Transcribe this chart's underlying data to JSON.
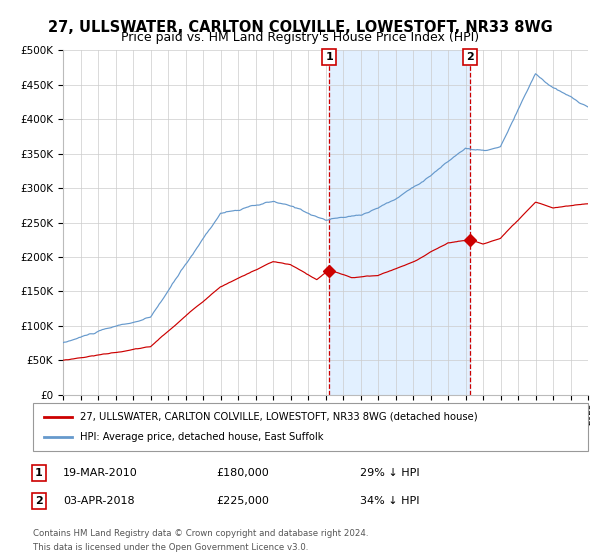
{
  "title": "27, ULLSWATER, CARLTON COLVILLE, LOWESTOFT, NR33 8WG",
  "subtitle": "Price paid vs. HM Land Registry's House Price Index (HPI)",
  "legend_label_red": "27, ULLSWATER, CARLTON COLVILLE, LOWESTOFT, NR33 8WG (detached house)",
  "legend_label_blue": "HPI: Average price, detached house, East Suffolk",
  "annotation1_date": "19-MAR-2010",
  "annotation1_price": "£180,000",
  "annotation1_hpi": "29% ↓ HPI",
  "annotation1_year": 2010.21,
  "annotation1_value": 180000,
  "annotation2_date": "03-APR-2018",
  "annotation2_price": "£225,000",
  "annotation2_hpi": "34% ↓ HPI",
  "annotation2_year": 2018.27,
  "annotation2_value": 225000,
  "footer_line1": "Contains HM Land Registry data © Crown copyright and database right 2024.",
  "footer_line2": "This data is licensed under the Open Government Licence v3.0.",
  "xmin": 1995,
  "xmax": 2025,
  "ymin": 0,
  "ymax": 500000,
  "yticks": [
    0,
    50000,
    100000,
    150000,
    200000,
    250000,
    300000,
    350000,
    400000,
    450000,
    500000
  ],
  "ytick_labels": [
    "£0",
    "£50K",
    "£100K",
    "£150K",
    "£200K",
    "£250K",
    "£300K",
    "£350K",
    "£400K",
    "£450K",
    "£500K"
  ],
  "red_color": "#cc0000",
  "blue_color": "#6699cc",
  "vline_color": "#cc0000",
  "shading_color": "#ddeeff",
  "grid_color": "#cccccc",
  "background_color": "#ffffff",
  "plot_bg_color": "#ffffff",
  "title_fontsize": 10.5,
  "subtitle_fontsize": 9
}
